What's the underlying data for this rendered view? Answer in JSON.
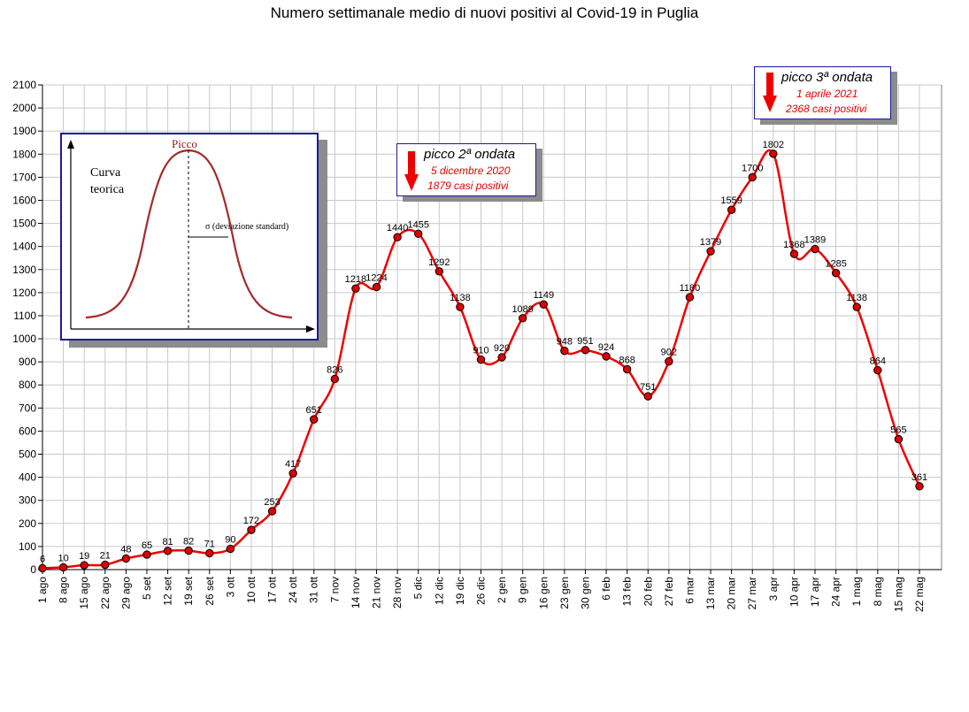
{
  "title": "Numero settimanale medio di nuovi positivi al Covid-19 in Puglia",
  "chart_data": {
    "type": "line",
    "title": "Numero settimanale medio di nuovi positivi al Covid-19 in Puglia",
    "xlabel": "",
    "ylabel": "",
    "ylim": [
      0,
      2100
    ],
    "yticks": [
      "0",
      "100",
      "200",
      "300",
      "400",
      "500",
      "600",
      "700",
      "800",
      "900",
      "1000",
      "1100",
      "1200",
      "1300",
      "1400",
      "1500",
      "1600",
      "1700",
      "1800",
      "1900",
      "2000",
      "2100"
    ],
    "grid": true,
    "categories": [
      "1 ago",
      "8 ago",
      "15 ago",
      "22 ago",
      "29 ago",
      "5 set",
      "12 set",
      "19 set",
      "26 set",
      "3 ott",
      "10 ott",
      "17 ott",
      "24 ott",
      "31 ott",
      "7 nov",
      "14 nov",
      "21 nov",
      "28 nov",
      "5 dic",
      "12 dic",
      "19 dic",
      "26 dic",
      "2 gen",
      "9 gen",
      "16 gen",
      "23 gen",
      "30 gen",
      "6 feb",
      "13 feb",
      "20 feb",
      "27 feb",
      "6 mar",
      "13 mar",
      "20 mar",
      "27 mar",
      "3 apr",
      "10 apr",
      "17 apr",
      "24 apr",
      "1 mag",
      "8 mag",
      "15 mag",
      "22 mag"
    ],
    "values": [
      6,
      10,
      19,
      21,
      48,
      65,
      81,
      82,
      71,
      90,
      172,
      253,
      417,
      651,
      826,
      1218,
      1224,
      1440,
      1455,
      1292,
      1138,
      910,
      920,
      1089,
      1149,
      948,
      951,
      924,
      868,
      751,
      902,
      1180,
      1379,
      1559,
      1700,
      1802,
      1368,
      1389,
      1285,
      1138,
      864,
      565,
      361
    ],
    "labels": [
      "6",
      "10",
      "19",
      "21",
      "48",
      "65",
      "81",
      "82",
      "71",
      "90",
      "172",
      "253",
      "417",
      "651",
      "826",
      "1218",
      "1224",
      "1440",
      "1455",
      "1292",
      "1138",
      "910",
      "920",
      "1089",
      "1149",
      "948",
      "951",
      "924",
      "868",
      "751",
      "902",
      "1180",
      "1379",
      "1559",
      "1700",
      "1802",
      "1368",
      "1389",
      "1285",
      "1138",
      "864",
      "565",
      "361"
    ],
    "line_color": "#ee0000",
    "marker_color": "#dd0000",
    "grid_color": "#c8c8c8"
  },
  "callouts": [
    {
      "header": "picco 2ª ondata",
      "line1": "5 dicembre 2020",
      "line2": "1879 casi positivi"
    },
    {
      "header": "picco 3ª ondata",
      "line1": "1 aprile 2021",
      "line2": "2368 casi positivi"
    }
  ],
  "inset": {
    "peak_label": "Picco",
    "curve_label_1": "Curva",
    "curve_label_2": "teorica",
    "sigma_label": "σ  (deviazione standard)"
  }
}
